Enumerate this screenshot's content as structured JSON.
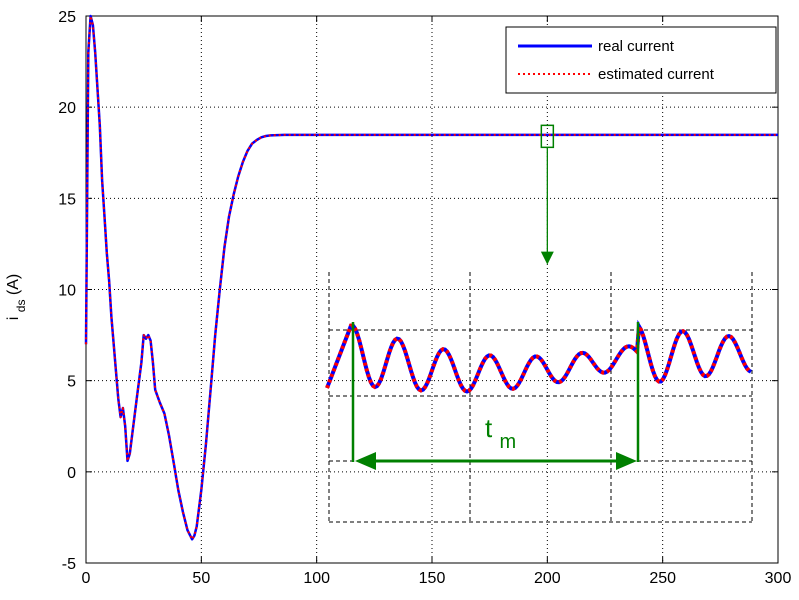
{
  "chart_data": {
    "type": "line",
    "title": "",
    "xlabel": "",
    "ylabel": {
      "main": "i",
      "sub": "ds",
      "unit": "(A)"
    },
    "xlim": [
      0,
      300
    ],
    "ylim": [
      -5,
      25
    ],
    "xticks": [
      "0",
      "50",
      "100",
      "150",
      "200",
      "250",
      "300"
    ],
    "yticks": [
      "-5",
      "0",
      "5",
      "10",
      "15",
      "20",
      "25"
    ],
    "grid": true,
    "legend_position": "top-right",
    "series": [
      {
        "name": "real current",
        "color": "#0000ff",
        "style": "solid",
        "x": [
          0,
          1,
          2,
          3,
          4,
          5,
          6,
          7,
          8,
          9,
          10,
          11,
          12,
          13,
          14,
          15,
          16,
          17,
          18,
          19,
          20,
          22,
          24,
          25,
          26,
          27,
          28,
          29,
          30,
          32,
          34,
          36,
          38,
          40,
          42,
          44,
          46,
          47,
          48,
          50,
          52,
          54,
          56,
          58,
          60,
          62,
          64,
          66,
          68,
          70,
          72,
          74,
          76,
          78,
          80,
          83,
          86,
          90,
          95,
          100,
          120,
          150,
          200,
          250,
          300
        ],
        "y": [
          7,
          23,
          25,
          24.5,
          23,
          21,
          19,
          16,
          14,
          12,
          10.5,
          8.5,
          7,
          5.5,
          4,
          3,
          3.5,
          2.5,
          0.6,
          1,
          2,
          4,
          6,
          7.5,
          7.3,
          7.5,
          7.2,
          6,
          4.5,
          3.8,
          3.2,
          2,
          0.5,
          -1,
          -2.2,
          -3.2,
          -3.7,
          -3.5,
          -3,
          -1,
          1.5,
          4.5,
          7.5,
          10,
          12.3,
          14,
          15.2,
          16.2,
          17,
          17.6,
          18,
          18.2,
          18.35,
          18.42,
          18.45,
          18.47,
          18.48,
          18.48,
          18.48,
          18.48,
          18.48,
          18.48,
          18.48,
          18.48,
          18.48
        ]
      },
      {
        "name": "estimated current",
        "color": "#ff0000",
        "style": "dotted",
        "x": [
          0,
          1,
          2,
          3,
          4,
          5,
          6,
          7,
          8,
          9,
          10,
          11,
          12,
          13,
          14,
          15,
          16,
          17,
          18,
          19,
          20,
          22,
          24,
          25,
          26,
          27,
          28,
          29,
          30,
          32,
          34,
          36,
          38,
          40,
          42,
          44,
          46,
          47,
          48,
          50,
          52,
          54,
          56,
          58,
          60,
          62,
          64,
          66,
          68,
          70,
          72,
          74,
          76,
          78,
          80,
          83,
          86,
          90,
          95,
          100,
          120,
          150,
          200,
          250,
          300
        ],
        "y": [
          7,
          23,
          25,
          24.5,
          23,
          21,
          19,
          16,
          14,
          12,
          10.5,
          8.5,
          7,
          5.5,
          4,
          3,
          3.5,
          2.5,
          0.6,
          1,
          2,
          4,
          6,
          7.5,
          7.3,
          7.5,
          7.2,
          6,
          4.5,
          3.8,
          3.2,
          2,
          0.5,
          -1,
          -2.2,
          -3.2,
          -3.7,
          -3.5,
          -3,
          -1,
          1.5,
          4.5,
          7.5,
          10,
          12.3,
          14,
          15.2,
          16.2,
          17,
          17.6,
          18,
          18.2,
          18.35,
          18.42,
          18.45,
          18.47,
          18.48,
          18.48,
          18.48,
          18.48,
          18.48,
          18.48,
          18.48,
          18.48,
          18.48
        ]
      }
    ],
    "annotations": {
      "zoom_box_color": "#008000",
      "zoom_box_center": {
        "x": 200,
        "y": 18.4
      },
      "inset": {
        "label_main": "t",
        "label_sub": "m",
        "line_color": "#008000",
        "wave_colors": [
          "#0000ff",
          "#ff0000"
        ]
      }
    }
  }
}
